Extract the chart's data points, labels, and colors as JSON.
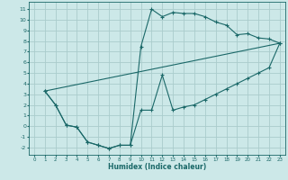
{
  "xlabel": "Humidex (Indice chaleur)",
  "bg_color": "#cce8e8",
  "grid_color": "#aacccc",
  "line_color": "#1a6868",
  "xlim": [
    -0.5,
    23.5
  ],
  "ylim": [
    -2.7,
    11.7
  ],
  "xticks": [
    0,
    1,
    2,
    3,
    4,
    5,
    6,
    7,
    8,
    9,
    10,
    11,
    12,
    13,
    14,
    15,
    16,
    17,
    18,
    19,
    20,
    21,
    22,
    23
  ],
  "yticks": [
    -2,
    -1,
    0,
    1,
    2,
    3,
    4,
    5,
    6,
    7,
    8,
    9,
    10,
    11
  ],
  "line1_x": [
    1,
    2,
    3,
    4,
    5,
    6,
    7,
    8,
    9,
    10,
    11,
    12,
    13,
    14,
    15,
    16,
    17,
    18,
    19,
    20,
    21,
    22,
    23
  ],
  "line1_y": [
    3.3,
    2.0,
    0.1,
    -0.1,
    -1.5,
    -1.8,
    -2.1,
    -1.8,
    -1.8,
    7.5,
    11.0,
    10.3,
    10.7,
    10.6,
    10.6,
    10.3,
    9.8,
    9.5,
    8.6,
    8.7,
    8.3,
    8.2,
    7.8
  ],
  "line2_x": [
    1,
    2,
    3,
    4,
    5,
    6,
    7,
    8,
    9,
    10,
    11,
    12,
    13,
    14,
    15,
    16,
    17,
    18,
    19,
    20,
    21,
    22,
    23
  ],
  "line2_y": [
    3.3,
    2.0,
    0.1,
    -0.1,
    -1.5,
    -1.8,
    -2.1,
    -1.8,
    -1.8,
    1.5,
    1.5,
    4.8,
    1.5,
    1.8,
    2.0,
    2.5,
    3.0,
    3.5,
    4.0,
    4.5,
    5.0,
    5.5,
    7.8
  ],
  "line3_x": [
    1,
    23
  ],
  "line3_y": [
    3.3,
    7.8
  ]
}
